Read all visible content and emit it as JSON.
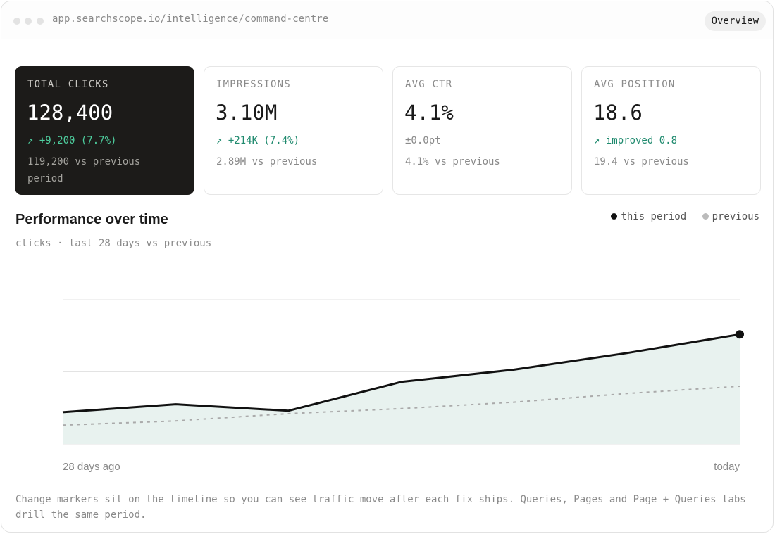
{
  "window": {
    "url": "app.searchscope.io/intelligence/command-centre",
    "tab_label": "Overview"
  },
  "metrics": [
    {
      "label": "TOTAL CLICKS",
      "value": "128,400",
      "delta": "↗ +9,200 (7.7%)",
      "previous": "119,200 vs previous period",
      "highlight": true
    },
    {
      "label": "IMPRESSIONS",
      "value": "3.10M",
      "delta": "↗ +214K (7.4%)",
      "previous": "2.89M vs previous",
      "highlight": false
    },
    {
      "label": "AVG CTR",
      "value": "4.1%",
      "delta": "±0.0pt",
      "previous": "4.1% vs previous",
      "highlight": false
    },
    {
      "label": "AVG POSITION",
      "value": "18.6",
      "delta": "↗ improved 0.8",
      "previous": "19.4 vs previous",
      "highlight": false
    }
  ],
  "performance": {
    "title": "Performance over time",
    "subtitle": "clicks · last 28 days vs previous",
    "legend": [
      {
        "label": "this period",
        "color": "#111111"
      },
      {
        "label": "previous",
        "color": "#bbbbbb"
      }
    ]
  },
  "chart_data": {
    "type": "line",
    "x_start_label": "28 days ago",
    "x_end_label": "today",
    "x": [
      0,
      1,
      2,
      3,
      4,
      5,
      6
    ],
    "ylim": [
      0,
      2
    ],
    "grid": true,
    "series": [
      {
        "name": "this period",
        "values": [
          0.44,
          0.55,
          0.46,
          0.86,
          1.03,
          1.26,
          1.52
        ],
        "color": "#111111",
        "style": "solid",
        "fill": "#e8f2ef"
      },
      {
        "name": "previous",
        "values": [
          0.26,
          0.32,
          0.42,
          0.49,
          0.58,
          0.7,
          0.8
        ],
        "color": "#aaaaaa",
        "style": "dashed"
      }
    ]
  },
  "footnote": "Change markers sit on the timeline so you can see traffic move after each fix ships. Queries, Pages and Page + Queries tabs drill the same period."
}
